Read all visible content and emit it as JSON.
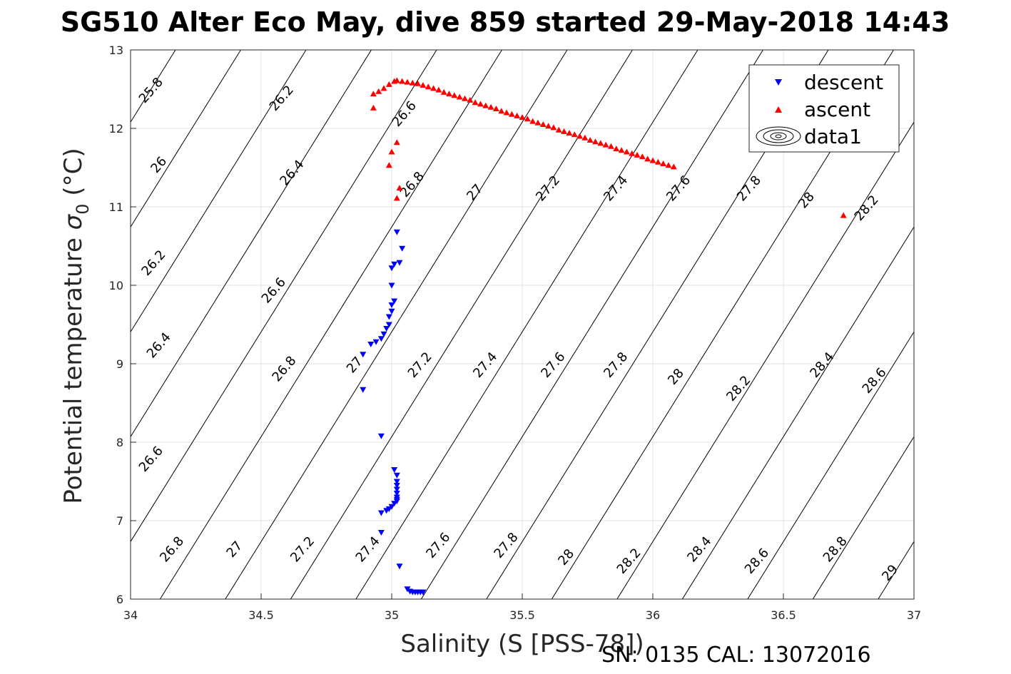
{
  "chart_data": {
    "type": "scatter",
    "title": "SG510 Alter Eco May, dive 859 started 29-May-2018 14:43",
    "xlabel": "Salinity (S [PSS-78])",
    "ylabel_main": "Potential temperature ",
    "ylabel_sym": "σ",
    "ylabel_sub": "0",
    "ylabel_unit": " (°C)",
    "xlim": [
      34,
      37
    ],
    "ylim": [
      6,
      13
    ],
    "xticks": [
      34,
      34.5,
      35,
      35.5,
      36,
      36.5,
      37
    ],
    "yticks": [
      6,
      7,
      8,
      9,
      10,
      11,
      12,
      13
    ],
    "grid": true,
    "footer": "SN: 0135  CAL: 13072016",
    "legend": {
      "location": "top-right",
      "entries": [
        {
          "name": "descent",
          "marker": "triangle-down",
          "color": "#0000ff"
        },
        {
          "name": "ascent",
          "marker": "triangle-up",
          "color": "#ff0000"
        },
        {
          "name": "data1",
          "marker": "contour",
          "color": "#000000"
        }
      ]
    },
    "contour_labels": [
      {
        "text": "25.8",
        "x": 34.09,
        "y": 12.45
      },
      {
        "text": "26.2",
        "x": 34.59,
        "y": 12.35
      },
      {
        "text": "26.6",
        "x": 35.06,
        "y": 12.15
      },
      {
        "text": "26",
        "x": 34.12,
        "y": 11.5
      },
      {
        "text": "26.4",
        "x": 34.63,
        "y": 11.4
      },
      {
        "text": "26.8",
        "x": 35.09,
        "y": 11.25
      },
      {
        "text": "27",
        "x": 35.33,
        "y": 11.15
      },
      {
        "text": "27.2",
        "x": 35.61,
        "y": 11.2
      },
      {
        "text": "27.4",
        "x": 35.87,
        "y": 11.2
      },
      {
        "text": "27.6",
        "x": 36.11,
        "y": 11.2
      },
      {
        "text": "27.8",
        "x": 36.38,
        "y": 11.2
      },
      {
        "text": "28",
        "x": 36.6,
        "y": 11.05
      },
      {
        "text": "28.2",
        "x": 36.83,
        "y": 10.95
      },
      {
        "text": "26.2",
        "x": 34.1,
        "y": 10.25
      },
      {
        "text": "26.6",
        "x": 34.56,
        "y": 9.9
      },
      {
        "text": "26.4",
        "x": 34.12,
        "y": 9.2
      },
      {
        "text": "26.8",
        "x": 34.6,
        "y": 8.9
      },
      {
        "text": "27",
        "x": 34.87,
        "y": 8.95
      },
      {
        "text": "27.2",
        "x": 35.12,
        "y": 8.95
      },
      {
        "text": "27.4",
        "x": 35.37,
        "y": 8.95
      },
      {
        "text": "27.6",
        "x": 35.63,
        "y": 8.95
      },
      {
        "text": "27.8",
        "x": 35.87,
        "y": 8.95
      },
      {
        "text": "28",
        "x": 36.1,
        "y": 8.8
      },
      {
        "text": "28.2",
        "x": 36.34,
        "y": 8.65
      },
      {
        "text": "28.4",
        "x": 36.66,
        "y": 8.95
      },
      {
        "text": "28.6",
        "x": 36.86,
        "y": 8.75
      },
      {
        "text": "26.6",
        "x": 34.09,
        "y": 7.75
      },
      {
        "text": "26.8",
        "x": 34.17,
        "y": 6.6
      },
      {
        "text": "27",
        "x": 34.41,
        "y": 6.6
      },
      {
        "text": "27.2",
        "x": 34.67,
        "y": 6.6
      },
      {
        "text": "27.4",
        "x": 34.92,
        "y": 6.6
      },
      {
        "text": "27.6",
        "x": 35.19,
        "y": 6.65
      },
      {
        "text": "27.8",
        "x": 35.45,
        "y": 6.65
      },
      {
        "text": "28",
        "x": 35.68,
        "y": 6.5
      },
      {
        "text": "28.2",
        "x": 35.92,
        "y": 6.45
      },
      {
        "text": "28.4",
        "x": 36.19,
        "y": 6.6
      },
      {
        "text": "28.6",
        "x": 36.41,
        "y": 6.45
      },
      {
        "text": "28.8",
        "x": 36.71,
        "y": 6.6
      },
      {
        "text": "29",
        "x": 36.92,
        "y": 6.3
      }
    ],
    "series": [
      {
        "name": "descent",
        "color": "#0000ff",
        "marker": "triangle-down",
        "points": [
          [
            35.02,
            10.68
          ],
          [
            35.04,
            10.47
          ],
          [
            35.01,
            10.27
          ],
          [
            35.03,
            10.29
          ],
          [
            35.0,
            10.22
          ],
          [
            35.0,
            10.0
          ],
          [
            35.01,
            9.8
          ],
          [
            35.0,
            9.75
          ],
          [
            35.0,
            9.67
          ],
          [
            34.99,
            9.6
          ],
          [
            34.99,
            9.5
          ],
          [
            34.98,
            9.45
          ],
          [
            34.97,
            9.38
          ],
          [
            34.96,
            9.32
          ],
          [
            34.94,
            9.28
          ],
          [
            34.92,
            9.25
          ],
          [
            34.89,
            9.12
          ],
          [
            34.89,
            8.67
          ],
          [
            34.96,
            8.08
          ],
          [
            35.01,
            7.65
          ],
          [
            35.02,
            7.58
          ],
          [
            35.02,
            7.5
          ],
          [
            35.02,
            7.45
          ],
          [
            35.02,
            7.4
          ],
          [
            35.02,
            7.35
          ],
          [
            35.02,
            7.3
          ],
          [
            35.02,
            7.27
          ],
          [
            35.02,
            7.25
          ],
          [
            35.01,
            7.22
          ],
          [
            35.0,
            7.18
          ],
          [
            34.99,
            7.15
          ],
          [
            34.98,
            7.13
          ],
          [
            34.96,
            7.1
          ],
          [
            34.96,
            6.85
          ],
          [
            35.03,
            6.42
          ],
          [
            35.06,
            6.13
          ],
          [
            35.07,
            6.1
          ],
          [
            35.08,
            6.09
          ],
          [
            35.09,
            6.09
          ],
          [
            35.1,
            6.09
          ],
          [
            35.11,
            6.09
          ],
          [
            35.12,
            6.09
          ]
        ]
      },
      {
        "name": "ascent",
        "color": "#ff0000",
        "marker": "triangle-up",
        "points": [
          [
            36.08,
            11.51
          ],
          [
            36.06,
            11.53
          ],
          [
            36.04,
            11.55
          ],
          [
            36.02,
            11.57
          ],
          [
            36.0,
            11.59
          ],
          [
            35.98,
            11.61
          ],
          [
            35.96,
            11.64
          ],
          [
            35.94,
            11.66
          ],
          [
            35.92,
            11.68
          ],
          [
            35.9,
            11.7
          ],
          [
            35.88,
            11.72
          ],
          [
            35.86,
            11.74
          ],
          [
            35.84,
            11.77
          ],
          [
            35.82,
            11.79
          ],
          [
            35.8,
            11.81
          ],
          [
            35.78,
            11.83
          ],
          [
            35.76,
            11.85
          ],
          [
            35.74,
            11.88
          ],
          [
            35.72,
            11.9
          ],
          [
            35.7,
            11.92
          ],
          [
            35.68,
            11.94
          ],
          [
            35.66,
            11.96
          ],
          [
            35.64,
            11.98
          ],
          [
            35.62,
            12.01
          ],
          [
            35.6,
            12.03
          ],
          [
            35.58,
            12.05
          ],
          [
            35.56,
            12.07
          ],
          [
            35.54,
            12.09
          ],
          [
            35.52,
            12.12
          ],
          [
            35.5,
            12.14
          ],
          [
            35.48,
            12.16
          ],
          [
            35.46,
            12.18
          ],
          [
            35.44,
            12.2
          ],
          [
            35.42,
            12.22
          ],
          [
            35.4,
            12.25
          ],
          [
            35.38,
            12.27
          ],
          [
            35.36,
            12.29
          ],
          [
            35.34,
            12.31
          ],
          [
            35.32,
            12.33
          ],
          [
            35.3,
            12.36
          ],
          [
            35.28,
            12.38
          ],
          [
            35.26,
            12.4
          ],
          [
            35.24,
            12.42
          ],
          [
            35.22,
            12.44
          ],
          [
            35.2,
            12.46
          ],
          [
            35.18,
            12.49
          ],
          [
            35.16,
            12.51
          ],
          [
            35.14,
            12.53
          ],
          [
            35.12,
            12.55
          ],
          [
            35.1,
            12.57
          ],
          [
            35.08,
            12.58
          ],
          [
            35.06,
            12.59
          ],
          [
            35.04,
            12.6
          ],
          [
            35.02,
            12.61
          ],
          [
            35.01,
            12.6
          ],
          [
            34.99,
            12.56
          ],
          [
            34.97,
            12.51
          ],
          [
            34.95,
            12.47
          ],
          [
            34.93,
            12.44
          ],
          [
            34.93,
            12.26
          ],
          [
            35.02,
            11.82
          ],
          [
            35.0,
            11.7
          ],
          [
            34.99,
            11.53
          ],
          [
            35.03,
            11.24
          ],
          [
            35.02,
            11.11
          ],
          [
            36.73,
            10.89
          ]
        ]
      }
    ]
  }
}
